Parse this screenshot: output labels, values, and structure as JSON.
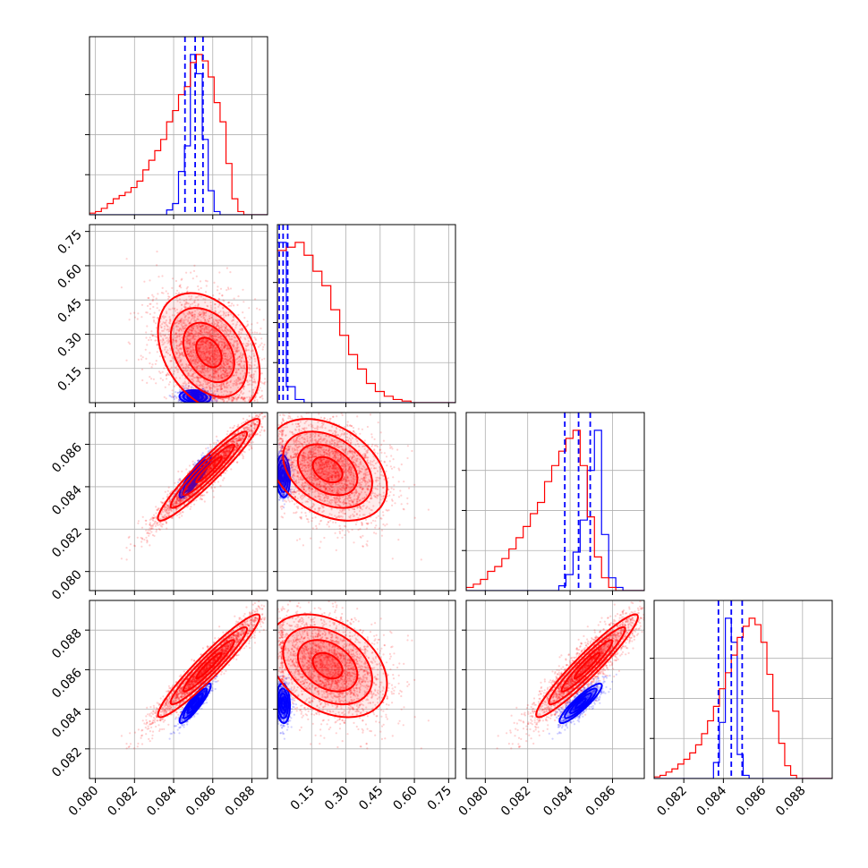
{
  "chart_data": {
    "type": "corner",
    "title": "",
    "parameters": [
      {
        "ticks": [
          0.08,
          0.082,
          0.084,
          0.086,
          0.088
        ],
        "tick_labels": [
          "0.080",
          "0.082",
          "0.084",
          "0.086",
          "0.088"
        ],
        "range": [
          0.0797,
          0.0888
        ]
      },
      {
        "ticks": [
          0.15,
          0.3,
          0.45,
          0.6,
          0.75
        ],
        "tick_labels": [
          "0.15",
          "0.30",
          "0.45",
          "0.60",
          "0.75"
        ],
        "range": [
          0.0,
          0.78
        ]
      },
      {
        "ticks": [
          0.08,
          0.082,
          0.084,
          0.086
        ],
        "tick_labels": [
          "0.080",
          "0.082",
          "0.084",
          "0.086"
        ],
        "range": [
          0.0791,
          0.0875
        ]
      },
      {
        "ticks": [
          0.082,
          0.084,
          0.086,
          0.088
        ],
        "tick_labels": [
          "0.082",
          "0.084",
          "0.086",
          "0.088"
        ],
        "range": [
          0.0805,
          0.0895
        ]
      }
    ],
    "series": [
      {
        "color": "#0000ff",
        "mean": [
          0.0851,
          0.025,
          0.0845,
          0.0843
        ],
        "std": [
          0.0004,
          0.015,
          0.0005,
          0.0005
        ],
        "corr": [
          [
            1,
            -0.1,
            0.9,
            0.9
          ],
          [
            -0.1,
            1,
            -0.1,
            -0.1
          ],
          [
            0.9,
            -0.1,
            1,
            0.9
          ],
          [
            0.9,
            -0.1,
            0.9,
            1
          ]
        ],
        "quantiles": [
          [
            0.08458,
            0.0851,
            0.0855
          ],
          [
            0.008,
            0.025,
            0.045
          ],
          [
            0.08375,
            0.0844,
            0.08495
          ],
          [
            0.08375,
            0.0844,
            0.08495
          ]
        ],
        "hist": [
          [
            0,
            0,
            0,
            0,
            0,
            0,
            0,
            0,
            0,
            0,
            0,
            0,
            0,
            0.03,
            0.07,
            0.27,
            0.43,
            1.0,
            0.88,
            0.47,
            0.15,
            0.02,
            0.0,
            0,
            0,
            0,
            0,
            0,
            0,
            0
          ],
          [
            1.0,
            0.1,
            0.02,
            0.0,
            0,
            0,
            0,
            0,
            0,
            0,
            0,
            0,
            0,
            0,
            0,
            0,
            0,
            0,
            0,
            0
          ],
          [
            0,
            0,
            0,
            0,
            0,
            0,
            0,
            0,
            0,
            0,
            0,
            0,
            0,
            0.03,
            0.1,
            0.24,
            0.44,
            0.75,
            1.0,
            0.35,
            0.08,
            0.02,
            0.0,
            0,
            0
          ],
          [
            0,
            0,
            0,
            0,
            0,
            0,
            0,
            0,
            0,
            0,
            0.1,
            0.35,
            1.0,
            0.85,
            0.15,
            0.02,
            0.0,
            0,
            0,
            0,
            0,
            0,
            0,
            0,
            0,
            0,
            0,
            0,
            0,
            0
          ]
        ]
      },
      {
        "color": "#ff0000",
        "mean": [
          0.0858,
          0.22,
          0.0848,
          0.0862
        ],
        "std": [
          0.0013,
          0.13,
          0.0012,
          0.0013
        ],
        "corr": [
          [
            1,
            -0.35,
            0.95,
            0.95
          ],
          [
            -0.35,
            1,
            -0.35,
            -0.35
          ],
          [
            0.95,
            -0.35,
            1,
            0.95
          ],
          [
            0.95,
            -0.35,
            0.95,
            1
          ]
        ],
        "hist": [
          [
            0.01,
            0.02,
            0.04,
            0.07,
            0.1,
            0.12,
            0.14,
            0.17,
            0.21,
            0.28,
            0.34,
            0.4,
            0.47,
            0.58,
            0.65,
            0.75,
            0.8,
            0.95,
            1.0,
            0.96,
            0.86,
            0.7,
            0.58,
            0.32,
            0.1,
            0.02,
            0,
            0,
            0,
            0
          ],
          [
            0.95,
            0.97,
            1.0,
            0.92,
            0.82,
            0.73,
            0.58,
            0.42,
            0.3,
            0.21,
            0.12,
            0.07,
            0.04,
            0.02,
            0.01,
            0.0,
            0,
            0,
            0,
            0
          ],
          [
            0.02,
            0.04,
            0.07,
            0.12,
            0.15,
            0.2,
            0.26,
            0.33,
            0.4,
            0.48,
            0.55,
            0.68,
            0.78,
            0.87,
            0.95,
            1.0,
            0.78,
            0.46,
            0.21,
            0.08,
            0.02,
            0.0,
            0,
            0,
            0
          ],
          [
            0.01,
            0.02,
            0.04,
            0.06,
            0.09,
            0.12,
            0.16,
            0.21,
            0.28,
            0.36,
            0.45,
            0.56,
            0.66,
            0.77,
            0.88,
            0.95,
            1.0,
            0.96,
            0.85,
            0.65,
            0.42,
            0.22,
            0.08,
            0.02,
            0,
            0,
            0,
            0,
            0,
            0
          ]
        ]
      }
    ],
    "grid": true,
    "legend": null
  }
}
